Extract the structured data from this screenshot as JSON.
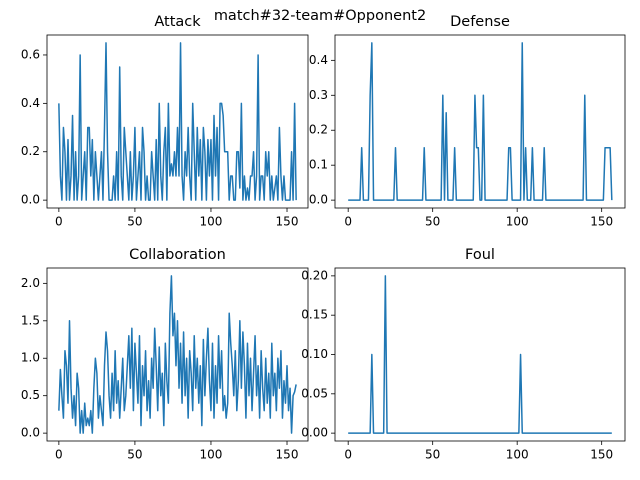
{
  "title": "match#32-team#Opponent2",
  "chart_data": [
    {
      "type": "line",
      "title": "Attack",
      "color": "#1f77b4",
      "x": [
        0,
        1,
        2,
        3,
        4,
        5,
        6,
        7,
        8,
        9,
        10,
        11,
        12,
        13,
        14,
        15,
        16,
        17,
        18,
        19,
        20,
        21,
        22,
        23,
        24,
        25,
        26,
        27,
        28,
        29,
        30,
        31,
        32,
        33,
        34,
        35,
        36,
        37,
        38,
        39,
        40,
        41,
        42,
        43,
        44,
        45,
        46,
        47,
        48,
        49,
        50,
        51,
        52,
        53,
        54,
        55,
        56,
        57,
        58,
        59,
        60,
        61,
        62,
        63,
        64,
        65,
        66,
        67,
        68,
        69,
        70,
        71,
        72,
        73,
        74,
        75,
        76,
        77,
        78,
        79,
        80,
        81,
        82,
        83,
        84,
        85,
        86,
        87,
        88,
        89,
        90,
        91,
        92,
        93,
        94,
        95,
        96,
        97,
        98,
        99,
        100,
        101,
        102,
        103,
        104,
        105,
        106,
        107,
        108,
        109,
        110,
        111,
        112,
        113,
        114,
        115,
        116,
        117,
        118,
        119,
        120,
        121,
        122,
        123,
        124,
        125,
        126,
        127,
        128,
        129,
        130,
        131,
        132,
        133,
        134,
        135,
        136,
        137,
        138,
        139,
        140,
        141,
        142,
        143,
        144,
        145,
        146,
        147,
        148,
        149,
        150,
        151,
        152,
        153,
        154,
        155,
        156
      ],
      "values": [
        0.4,
        0.1,
        0,
        0.3,
        0.2,
        0,
        0.25,
        0,
        0.1,
        0.35,
        0,
        0.2,
        0,
        0.1,
        0.6,
        0,
        0.1,
        0.2,
        0,
        0.3,
        0.3,
        0.1,
        0.25,
        0,
        0.2,
        0.1,
        0,
        0.1,
        0.2,
        0,
        0.3,
        0.65,
        0.2,
        0,
        0,
        0,
        0.1,
        0,
        0.2,
        0,
        0.55,
        0.1,
        0,
        0.3,
        0.2,
        0.1,
        0,
        0.2,
        0,
        0.1,
        0.3,
        0,
        0.1,
        0.2,
        0,
        0.3,
        0.2,
        0,
        0.1,
        0,
        0,
        0.2,
        0.1,
        0,
        0.25,
        0,
        0.4,
        0.1,
        0,
        0.2,
        0.3,
        0,
        0.4,
        0.1,
        0.15,
        0.1,
        0.2,
        0.1,
        0.3,
        0.1,
        0.65,
        0.1,
        0,
        0.2,
        0.1,
        0.3,
        0.1,
        0,
        0.4,
        0.2,
        0,
        0.3,
        0.1,
        0.25,
        0,
        0.3,
        0.2,
        0,
        0.25,
        0.1,
        0.25,
        0,
        0.35,
        0.1,
        0.3,
        0,
        0.4,
        0.4,
        0.35,
        0.2,
        0.2,
        0.2,
        0,
        0.1,
        0.1,
        0,
        0,
        0.2,
        0.2,
        0.05,
        0.4,
        0,
        0.1,
        0,
        0.05,
        0,
        0.1,
        0.1,
        0.2,
        0,
        0.1,
        0.6,
        0,
        0.1,
        0.1,
        0,
        0.2,
        0.1,
        0.2,
        0,
        0.1,
        0,
        0.05,
        0.1,
        0,
        0.3,
        0.1,
        0,
        0.1,
        0,
        0,
        0,
        0,
        0.2,
        0,
        0.4,
        0
      ],
      "xlim": [
        -7.8,
        163.8
      ],
      "xticks": [
        0,
        50,
        100,
        150
      ],
      "ylim": [
        -0.0325,
        0.6825
      ],
      "yticks": [
        {
          "value": 0,
          "label": "0.0"
        },
        {
          "value": 0.2,
          "label": "0.2"
        },
        {
          "value": 0.4,
          "label": "0.4"
        },
        {
          "value": 0.6,
          "label": "0.6"
        }
      ]
    },
    {
      "type": "line",
      "title": "Defense",
      "color": "#1f77b4",
      "x": [
        0,
        1,
        2,
        3,
        4,
        5,
        6,
        7,
        8,
        9,
        10,
        11,
        12,
        13,
        14,
        15,
        16,
        17,
        18,
        19,
        20,
        21,
        22,
        23,
        24,
        25,
        26,
        27,
        28,
        29,
        30,
        31,
        32,
        33,
        34,
        35,
        36,
        37,
        38,
        39,
        40,
        41,
        42,
        43,
        44,
        45,
        46,
        47,
        48,
        49,
        50,
        51,
        52,
        53,
        54,
        55,
        56,
        57,
        58,
        59,
        60,
        61,
        62,
        63,
        64,
        65,
        66,
        67,
        68,
        69,
        70,
        71,
        72,
        73,
        74,
        75,
        76,
        77,
        78,
        79,
        80,
        81,
        82,
        83,
        84,
        85,
        86,
        87,
        88,
        89,
        90,
        91,
        92,
        93,
        94,
        95,
        96,
        97,
        98,
        99,
        100,
        101,
        102,
        103,
        104,
        105,
        106,
        107,
        108,
        109,
        110,
        111,
        112,
        113,
        114,
        115,
        116,
        117,
        118,
        119,
        120,
        121,
        122,
        123,
        124,
        125,
        126,
        127,
        128,
        129,
        130,
        131,
        132,
        133,
        134,
        135,
        136,
        137,
        138,
        139,
        140,
        141,
        142,
        143,
        144,
        145,
        146,
        147,
        148,
        149,
        150,
        151,
        152,
        153,
        154,
        155,
        156
      ],
      "values": [
        0,
        0,
        0,
        0,
        0,
        0,
        0,
        0,
        0.15,
        0,
        0,
        0,
        0,
        0.3,
        0.45,
        0,
        0,
        0,
        0,
        0,
        0,
        0,
        0,
        0,
        0,
        0,
        0,
        0,
        0.15,
        0,
        0,
        0,
        0,
        0,
        0,
        0,
        0,
        0,
        0,
        0,
        0,
        0,
        0,
        0,
        0,
        0.15,
        0,
        0,
        0,
        0,
        0,
        0,
        0,
        0,
        0,
        0,
        0.3,
        0,
        0.25,
        0,
        0,
        0,
        0,
        0.15,
        0,
        0,
        0,
        0,
        0,
        0,
        0,
        0,
        0,
        0,
        0,
        0.3,
        0.15,
        0.15,
        0,
        0,
        0.3,
        0,
        0,
        0,
        0,
        0,
        0,
        0,
        0,
        0,
        0,
        0,
        0,
        0,
        0,
        0.15,
        0.15,
        0,
        0,
        0,
        0,
        0,
        0,
        0.45,
        0,
        0.15,
        0,
        0,
        0,
        0.15,
        0,
        0,
        0,
        0,
        0,
        0,
        0.15,
        0,
        0,
        0,
        0,
        0,
        0,
        0,
        0,
        0,
        0,
        0,
        0,
        0,
        0,
        0,
        0,
        0,
        0,
        0,
        0,
        0,
        0,
        0,
        0.3,
        0,
        0,
        0,
        0,
        0,
        0,
        0,
        0,
        0,
        0,
        0,
        0.15,
        0.15,
        0.15,
        0.15,
        0
      ],
      "xlim": [
        -7.8,
        163.8
      ],
      "xticks": [
        0,
        50,
        100,
        150
      ],
      "ylim": [
        -0.0225,
        0.4725
      ],
      "yticks": [
        {
          "value": 0,
          "label": "0.0"
        },
        {
          "value": 0.1,
          "label": "0.1"
        },
        {
          "value": 0.2,
          "label": "0.2"
        },
        {
          "value": 0.3,
          "label": "0.3"
        },
        {
          "value": 0.4,
          "label": "0.4"
        }
      ]
    },
    {
      "type": "line",
      "title": "Collaboration",
      "color": "#1f77b4",
      "x": [
        0,
        1,
        2,
        3,
        4,
        5,
        6,
        7,
        8,
        9,
        10,
        11,
        12,
        13,
        14,
        15,
        16,
        17,
        18,
        19,
        20,
        21,
        22,
        23,
        24,
        25,
        26,
        27,
        28,
        29,
        30,
        31,
        32,
        33,
        34,
        35,
        36,
        37,
        38,
        39,
        40,
        41,
        42,
        43,
        44,
        45,
        46,
        47,
        48,
        49,
        50,
        51,
        52,
        53,
        54,
        55,
        56,
        57,
        58,
        59,
        60,
        61,
        62,
        63,
        64,
        65,
        66,
        67,
        68,
        69,
        70,
        71,
        72,
        73,
        74,
        75,
        76,
        77,
        78,
        79,
        80,
        81,
        82,
        83,
        84,
        85,
        86,
        87,
        88,
        89,
        90,
        91,
        92,
        93,
        94,
        95,
        96,
        97,
        98,
        99,
        100,
        101,
        102,
        103,
        104,
        105,
        106,
        107,
        108,
        109,
        110,
        111,
        112,
        113,
        114,
        115,
        116,
        117,
        118,
        119,
        120,
        121,
        122,
        123,
        124,
        125,
        126,
        127,
        128,
        129,
        130,
        131,
        132,
        133,
        134,
        135,
        136,
        137,
        138,
        139,
        140,
        141,
        142,
        143,
        144,
        145,
        146,
        147,
        148,
        149,
        150,
        151,
        152,
        153,
        154,
        155,
        156
      ],
      "values": [
        0.3,
        0.85,
        0.5,
        0.2,
        1.1,
        0.9,
        0.4,
        1.5,
        0.6,
        0.2,
        0.5,
        0.1,
        0.8,
        0.6,
        0,
        0.3,
        0,
        0.4,
        0.1,
        0.2,
        0.1,
        0.3,
        0,
        0.6,
        1.0,
        0.8,
        0.2,
        0.5,
        0.3,
        0.1,
        0.9,
        1.35,
        1.1,
        0.5,
        0.2,
        0.8,
        0.3,
        1.1,
        0.4,
        0.7,
        0.2,
        0.6,
        1.0,
        0.3,
        0.5,
        0.9,
        1.3,
        0.6,
        1.4,
        0.3,
        1.2,
        0.8,
        0.4,
        1.3,
        0.1,
        0.9,
        0.5,
        1.1,
        0.3,
        0.7,
        0.2,
        1.0,
        0.6,
        1.4,
        0.9,
        0.3,
        1.15,
        0.5,
        0.8,
        0.1,
        1.2,
        0.7,
        0.4,
        1.6,
        2.1,
        1.3,
        1.6,
        0.9,
        1.5,
        0.6,
        1.2,
        0.4,
        1.35,
        0.5,
        1.0,
        0.2,
        1.1,
        0.8,
        0.3,
        1.3,
        0.6,
        1.0,
        0.4,
        0.9,
        0.1,
        1.25,
        0.5,
        1.0,
        1.4,
        0.7,
        0.3,
        1.2,
        0.2,
        0.9,
        0.4,
        1.3,
        0.6,
        1.1,
        0.3,
        0.5,
        0.2,
        0.4,
        1.6,
        1.2,
        0.9,
        0.5,
        1.1,
        0.3,
        0.7,
        1.5,
        0.6,
        1.35,
        0.9,
        0.2,
        1.2,
        0.5,
        1.0,
        0.3,
        0.8,
        1.3,
        0.5,
        0.9,
        0.2,
        1.1,
        0.6,
        0.3,
        1.0,
        0.4,
        0.8,
        0.2,
        1.2,
        0.5,
        0.8,
        0.3,
        1.0,
        0.6,
        1.1,
        0.2,
        0.7,
        0.4,
        0.9,
        0.3,
        0.6,
        0,
        0.5,
        0.55,
        0.65
      ],
      "xlim": [
        -7.8,
        163.8
      ],
      "xticks": [
        0,
        50,
        100,
        150
      ],
      "ylim": [
        -0.105,
        2.205
      ],
      "yticks": [
        {
          "value": 0,
          "label": "0.0"
        },
        {
          "value": 0.5,
          "label": "0.5"
        },
        {
          "value": 1,
          "label": "1.0"
        },
        {
          "value": 1.5,
          "label": "1.5"
        },
        {
          "value": 2,
          "label": "2.0"
        }
      ]
    },
    {
      "type": "line",
      "title": "Foul",
      "color": "#1f77b4",
      "x": [
        0,
        1,
        2,
        3,
        4,
        5,
        6,
        7,
        8,
        9,
        10,
        11,
        12,
        13,
        14,
        15,
        16,
        17,
        18,
        19,
        20,
        21,
        22,
        23,
        24,
        25,
        26,
        27,
        28,
        29,
        30,
        31,
        32,
        33,
        34,
        35,
        36,
        37,
        38,
        39,
        40,
        41,
        42,
        43,
        44,
        45,
        46,
        47,
        48,
        49,
        50,
        51,
        52,
        53,
        54,
        55,
        56,
        57,
        58,
        59,
        60,
        61,
        62,
        63,
        64,
        65,
        66,
        67,
        68,
        69,
        70,
        71,
        72,
        73,
        74,
        75,
        76,
        77,
        78,
        79,
        80,
        81,
        82,
        83,
        84,
        85,
        86,
        87,
        88,
        89,
        90,
        91,
        92,
        93,
        94,
        95,
        96,
        97,
        98,
        99,
        100,
        101,
        102,
        103,
        104,
        105,
        106,
        107,
        108,
        109,
        110,
        111,
        112,
        113,
        114,
        115,
        116,
        117,
        118,
        119,
        120,
        121,
        122,
        123,
        124,
        125,
        126,
        127,
        128,
        129,
        130,
        131,
        132,
        133,
        134,
        135,
        136,
        137,
        138,
        139,
        140,
        141,
        142,
        143,
        144,
        145,
        146,
        147,
        148,
        149,
        150,
        151,
        152,
        153,
        154,
        155,
        156
      ],
      "values": [
        0,
        0,
        0,
        0,
        0,
        0,
        0,
        0,
        0,
        0,
        0,
        0,
        0,
        0,
        0.1,
        0,
        0,
        0,
        0,
        0,
        0,
        0,
        0.2,
        0,
        0,
        0,
        0,
        0,
        0,
        0,
        0,
        0,
        0,
        0,
        0,
        0,
        0,
        0,
        0,
        0,
        0,
        0,
        0,
        0,
        0,
        0,
        0,
        0,
        0,
        0,
        0,
        0,
        0,
        0,
        0,
        0,
        0,
        0,
        0,
        0,
        0,
        0,
        0,
        0,
        0,
        0,
        0,
        0,
        0,
        0,
        0,
        0,
        0,
        0,
        0,
        0,
        0,
        0,
        0,
        0,
        0,
        0,
        0,
        0,
        0,
        0,
        0,
        0,
        0,
        0,
        0,
        0,
        0,
        0,
        0,
        0,
        0,
        0,
        0,
        0,
        0,
        0,
        0.1,
        0,
        0,
        0,
        0,
        0,
        0,
        0,
        0,
        0,
        0,
        0,
        0,
        0,
        0,
        0,
        0,
        0,
        0,
        0,
        0,
        0,
        0,
        0,
        0,
        0,
        0,
        0,
        0,
        0,
        0,
        0,
        0,
        0,
        0,
        0,
        0,
        0,
        0,
        0,
        0,
        0,
        0,
        0,
        0,
        0,
        0,
        0,
        0,
        0,
        0,
        0,
        0,
        0,
        0
      ],
      "xlim": [
        -7.8,
        163.8
      ],
      "xticks": [
        0,
        50,
        100,
        150
      ],
      "ylim": [
        -0.01,
        0.21
      ],
      "yticks": [
        {
          "value": 0,
          "label": "0.00"
        },
        {
          "value": 0.05,
          "label": "0.05"
        },
        {
          "value": 0.1,
          "label": "0.10"
        },
        {
          "value": 0.15,
          "label": "0.15"
        },
        {
          "value": 0.2,
          "label": "0.20"
        }
      ]
    }
  ]
}
